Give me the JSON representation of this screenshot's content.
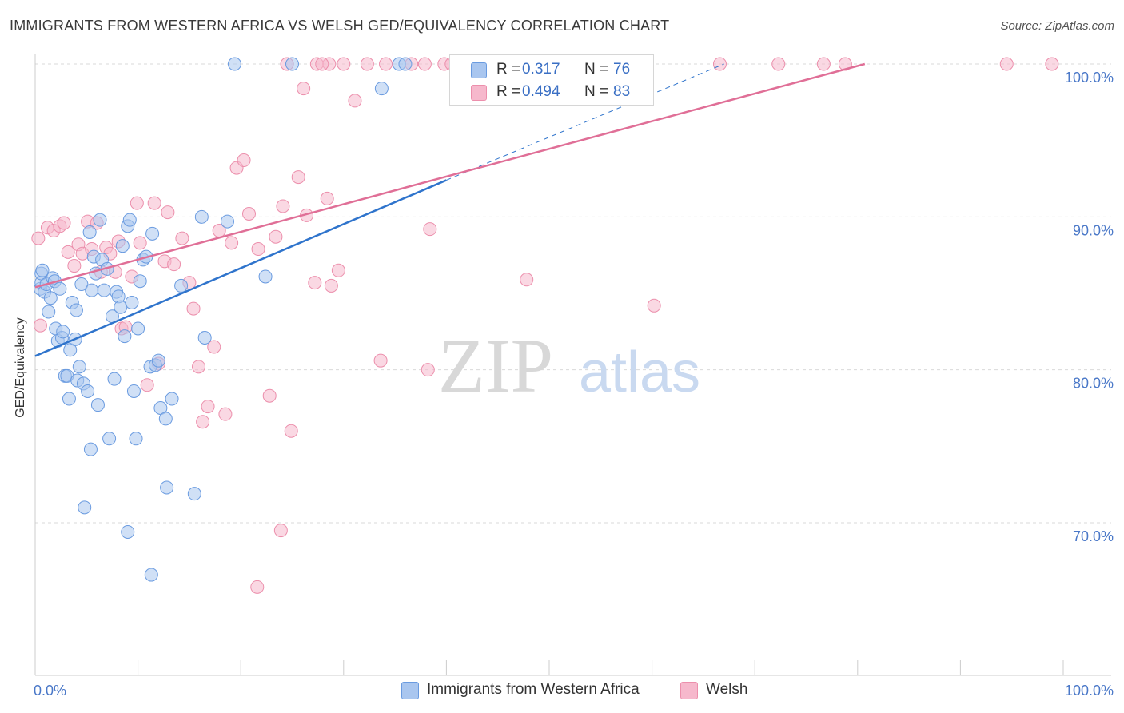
{
  "title": "IMMIGRANTS FROM WESTERN AFRICA VS WELSH GED/EQUIVALENCY CORRELATION CHART",
  "source": "Source: ZipAtlas.com",
  "watermark": {
    "zip": "ZIP",
    "atlas": "atlas"
  },
  "colors": {
    "blue_fill": "#a9c6ef",
    "blue_stroke": "#6a9be0",
    "blue_line": "#2f74cc",
    "pink_fill": "#f6b8cc",
    "pink_stroke": "#ec8fac",
    "pink_line": "#e06f97",
    "grid": "#d9d9d9",
    "tick_text": "#4a78c8"
  },
  "legend": {
    "rows": [
      {
        "r_label": "R =",
        "r_value": "0.317",
        "n_label": "N =",
        "n_value": "76",
        "series": "blue"
      },
      {
        "r_label": "R =",
        "r_value": "0.494",
        "n_label": "N =",
        "n_value": "83",
        "series": "pink"
      }
    ]
  },
  "bottom_legend": {
    "blue": "Immigrants from Western Africa",
    "pink": "Welsh"
  },
  "chart_data": {
    "type": "scatter",
    "title": "IMMIGRANTS FROM WESTERN AFRICA VS WELSH GED/EQUIVALENCY CORRELATION CHART",
    "xlabel": "",
    "ylabel": "GED/Equivalency",
    "xlim": [
      0,
      100
    ],
    "ylim": [
      61.5,
      101.5
    ],
    "x_tick_labels": [
      "0.0%",
      "100.0%"
    ],
    "y_ticks": [
      70,
      80,
      90,
      100
    ],
    "y_tick_labels": [
      "70.0%",
      "80.0%",
      "90.0%",
      "100.0%"
    ],
    "grid": true,
    "series": [
      {
        "name": "Immigrants from Western Africa",
        "color": "blue",
        "R": 0.317,
        "N": 76,
        "trend": {
          "x0": 0,
          "y0": 80.9,
          "x1": 40,
          "y1": 92.4,
          "dashed_to_x": 67,
          "dashed_to_y": 100
        },
        "points": [
          [
            0.5,
            85.3
          ],
          [
            0.6,
            85.7
          ],
          [
            0.6,
            86.3
          ],
          [
            0.7,
            86.5
          ],
          [
            0.9,
            85.1
          ],
          [
            1.1,
            85.6
          ],
          [
            1.3,
            83.8
          ],
          [
            1.5,
            84.7
          ],
          [
            1.7,
            86.0
          ],
          [
            1.9,
            85.8
          ],
          [
            2.0,
            82.7
          ],
          [
            2.2,
            81.9
          ],
          [
            2.4,
            85.3
          ],
          [
            2.6,
            82.1
          ],
          [
            2.7,
            82.5
          ],
          [
            2.9,
            79.6
          ],
          [
            3.1,
            79.6
          ],
          [
            3.3,
            78.1
          ],
          [
            3.4,
            81.3
          ],
          [
            3.6,
            84.4
          ],
          [
            3.9,
            82.0
          ],
          [
            4.0,
            83.9
          ],
          [
            4.1,
            79.3
          ],
          [
            4.3,
            80.2
          ],
          [
            4.5,
            85.6
          ],
          [
            4.7,
            79.1
          ],
          [
            5.1,
            78.6
          ],
          [
            5.3,
            89.0
          ],
          [
            5.5,
            85.2
          ],
          [
            5.7,
            87.4
          ],
          [
            5.9,
            86.3
          ],
          [
            6.1,
            77.7
          ],
          [
            6.3,
            89.8
          ],
          [
            6.5,
            87.2
          ],
          [
            6.7,
            85.2
          ],
          [
            7.0,
            86.6
          ],
          [
            7.2,
            75.5
          ],
          [
            7.5,
            83.5
          ],
          [
            7.7,
            79.4
          ],
          [
            7.9,
            85.1
          ],
          [
            8.1,
            84.8
          ],
          [
            8.3,
            84.1
          ],
          [
            8.5,
            88.1
          ],
          [
            8.7,
            82.2
          ],
          [
            9.0,
            89.4
          ],
          [
            9.2,
            89.8
          ],
          [
            9.4,
            84.4
          ],
          [
            9.6,
            78.6
          ],
          [
            9.8,
            75.5
          ],
          [
            10.0,
            82.7
          ],
          [
            10.2,
            85.8
          ],
          [
            10.5,
            87.2
          ],
          [
            10.8,
            87.4
          ],
          [
            11.2,
            80.2
          ],
          [
            11.4,
            88.9
          ],
          [
            11.7,
            80.3
          ],
          [
            12.0,
            80.6
          ],
          [
            12.2,
            77.5
          ],
          [
            12.7,
            76.8
          ],
          [
            13.3,
            78.1
          ],
          [
            14.2,
            85.5
          ],
          [
            16.2,
            90.0
          ],
          [
            16.5,
            82.1
          ],
          [
            18.7,
            89.7
          ],
          [
            22.4,
            86.1
          ],
          [
            5.4,
            74.8
          ],
          [
            4.8,
            71.0
          ],
          [
            9.0,
            69.4
          ],
          [
            11.3,
            66.6
          ],
          [
            12.8,
            72.3
          ],
          [
            15.5,
            71.9
          ],
          [
            19.4,
            100.0
          ],
          [
            33.7,
            98.4
          ],
          [
            35.4,
            100.0
          ],
          [
            36.0,
            100.0
          ],
          [
            25.0,
            100.0
          ]
        ]
      },
      {
        "name": "Welsh",
        "color": "pink",
        "R": 0.494,
        "N": 83,
        "trend": {
          "x0": 0,
          "y0": 85.4,
          "x1": 80.7,
          "y1": 100
        },
        "points": [
          [
            0.3,
            88.6
          ],
          [
            0.5,
            82.9
          ],
          [
            1.2,
            89.3
          ],
          [
            1.8,
            89.1
          ],
          [
            2.4,
            89.4
          ],
          [
            2.8,
            89.6
          ],
          [
            3.2,
            87.7
          ],
          [
            3.8,
            86.8
          ],
          [
            4.2,
            88.2
          ],
          [
            4.6,
            87.6
          ],
          [
            5.1,
            89.7
          ],
          [
            5.5,
            87.9
          ],
          [
            6.0,
            89.6
          ],
          [
            6.4,
            86.4
          ],
          [
            6.9,
            88.0
          ],
          [
            7.3,
            87.6
          ],
          [
            7.8,
            86.4
          ],
          [
            8.1,
            88.4
          ],
          [
            8.4,
            82.7
          ],
          [
            8.8,
            82.8
          ],
          [
            9.4,
            86.1
          ],
          [
            9.9,
            90.9
          ],
          [
            10.2,
            88.3
          ],
          [
            10.9,
            79.0
          ],
          [
            11.6,
            90.9
          ],
          [
            12.0,
            80.4
          ],
          [
            12.6,
            87.1
          ],
          [
            12.9,
            90.3
          ],
          [
            13.5,
            86.9
          ],
          [
            14.3,
            88.6
          ],
          [
            15.0,
            85.7
          ],
          [
            15.4,
            84.0
          ],
          [
            15.9,
            80.2
          ],
          [
            16.3,
            76.6
          ],
          [
            16.8,
            77.6
          ],
          [
            17.4,
            81.5
          ],
          [
            17.9,
            89.1
          ],
          [
            18.5,
            77.1
          ],
          [
            19.1,
            88.3
          ],
          [
            19.6,
            93.2
          ],
          [
            20.3,
            93.7
          ],
          [
            20.8,
            90.2
          ],
          [
            21.7,
            87.9
          ],
          [
            22.8,
            78.3
          ],
          [
            23.4,
            88.7
          ],
          [
            24.1,
            90.7
          ],
          [
            24.9,
            76.0
          ],
          [
            25.6,
            92.6
          ],
          [
            26.4,
            90.1
          ],
          [
            27.2,
            85.7
          ],
          [
            28.4,
            91.2
          ],
          [
            28.8,
            85.5
          ],
          [
            29.5,
            86.5
          ],
          [
            31.1,
            97.6
          ],
          [
            33.6,
            80.6
          ],
          [
            38.2,
            80.0
          ],
          [
            38.4,
            89.2
          ],
          [
            39.8,
            100.0
          ],
          [
            47.8,
            85.9
          ],
          [
            60.2,
            84.2
          ],
          [
            23.9,
            69.5
          ],
          [
            21.6,
            65.8
          ],
          [
            27.4,
            100.0
          ],
          [
            24.5,
            100.0
          ],
          [
            26.1,
            98.4
          ],
          [
            28.6,
            100.0
          ],
          [
            30.0,
            100.0
          ],
          [
            32.3,
            100.0
          ],
          [
            34.1,
            100.0
          ],
          [
            36.6,
            100.0
          ],
          [
            37.9,
            100.0
          ],
          [
            40.5,
            100.0
          ],
          [
            43.7,
            100.0
          ],
          [
            47.2,
            100.0
          ],
          [
            49.9,
            100.0
          ],
          [
            53.6,
            100.0
          ],
          [
            66.6,
            100.0
          ],
          [
            72.3,
            100.0
          ],
          [
            76.7,
            100.0
          ],
          [
            78.8,
            100.0
          ],
          [
            94.5,
            100.0
          ],
          [
            98.9,
            100.0
          ],
          [
            27.9,
            100.0
          ]
        ]
      }
    ]
  }
}
